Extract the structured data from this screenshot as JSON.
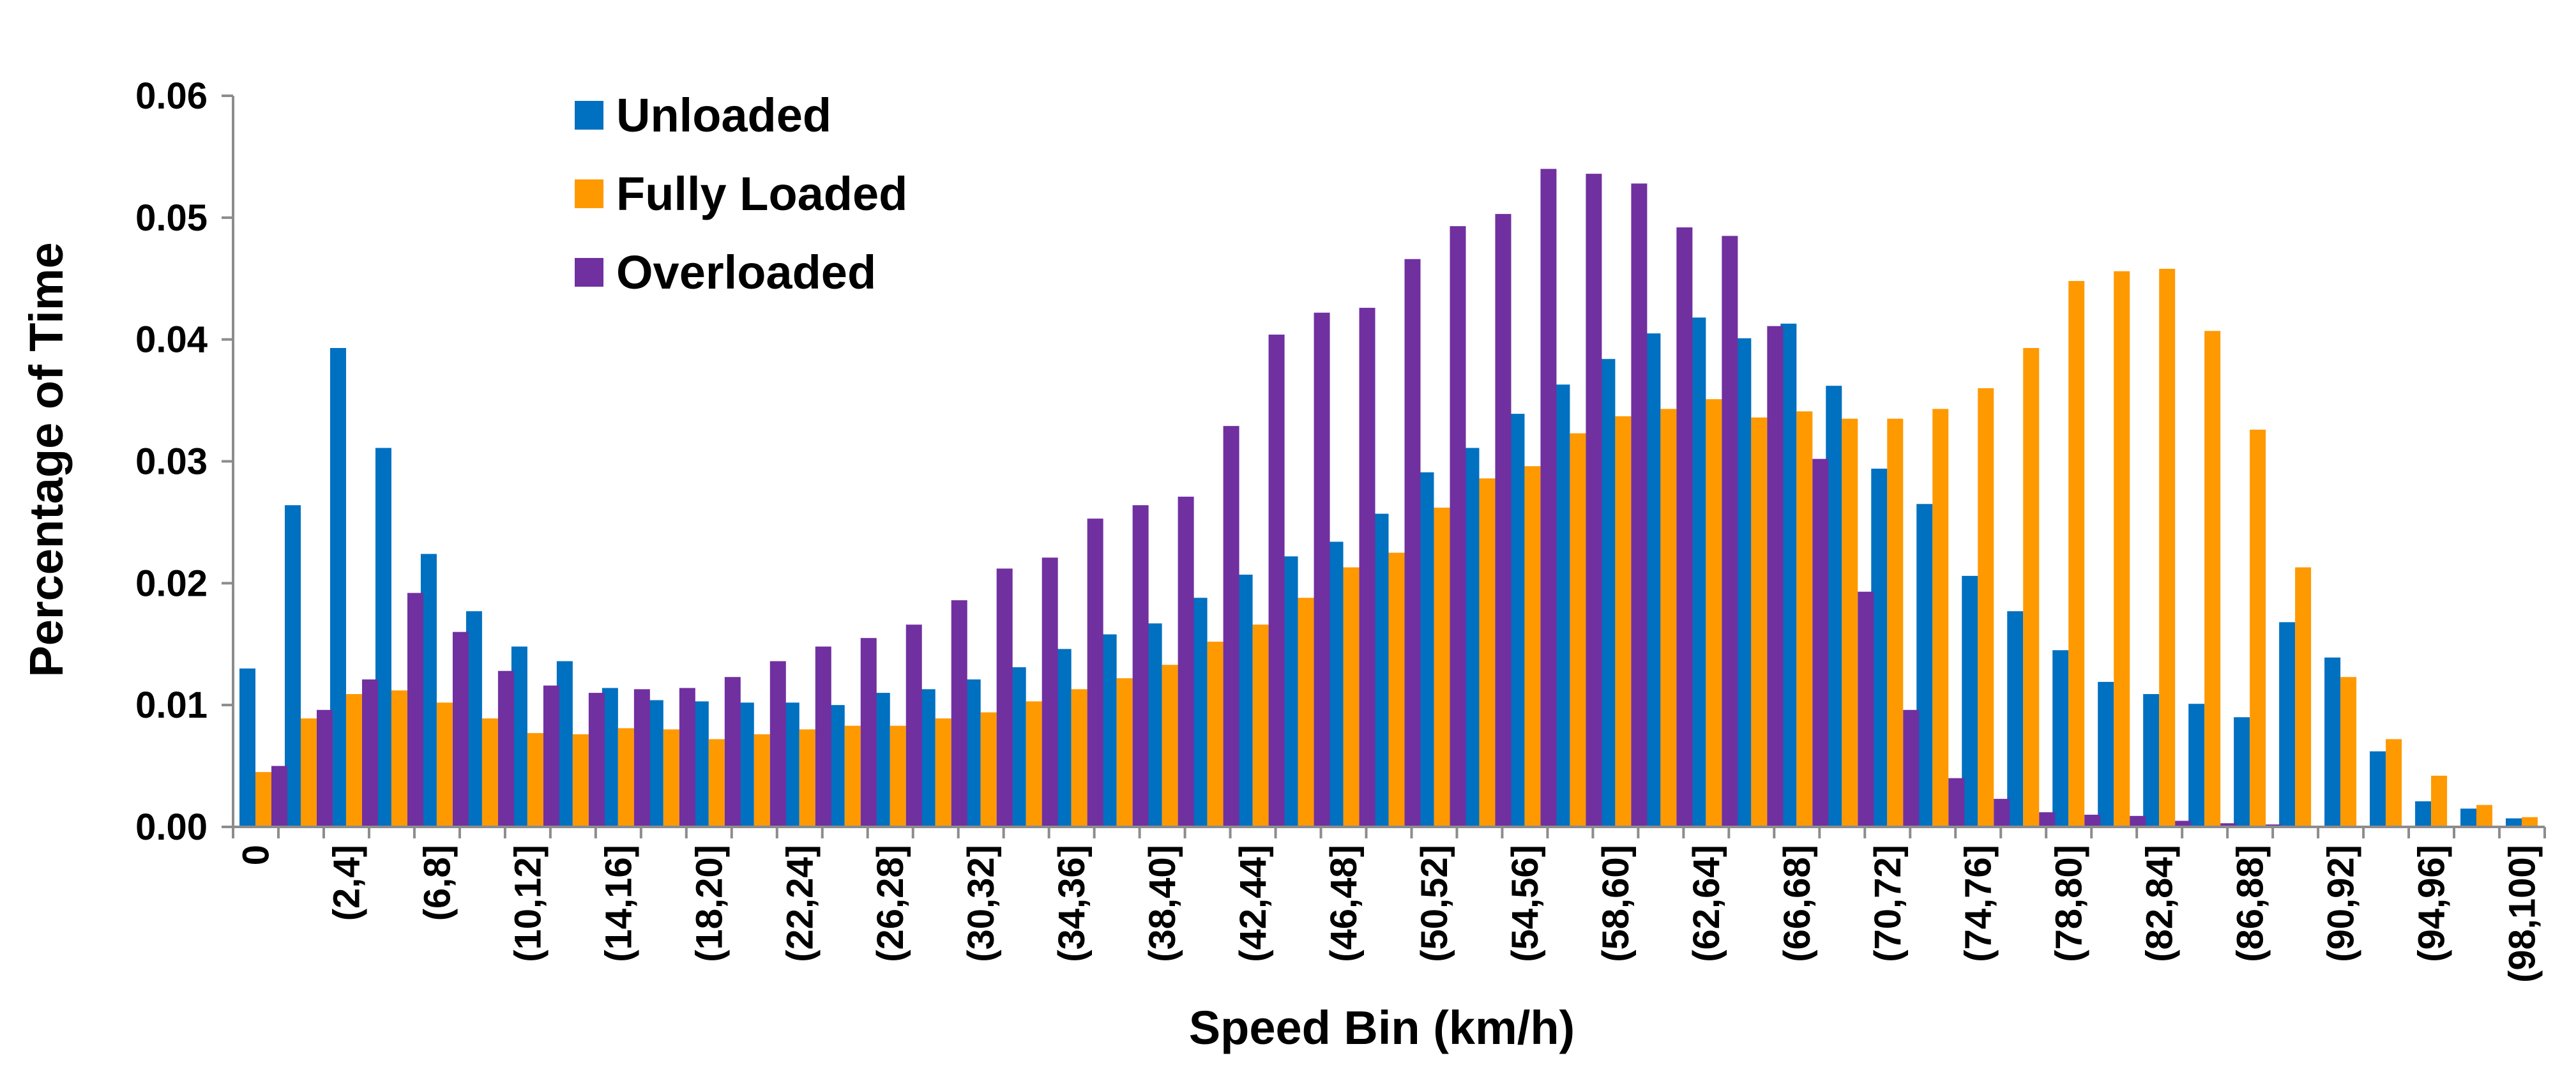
{
  "chart_data": {
    "type": "bar",
    "title": "",
    "xlabel": "Speed Bin (km/h)",
    "ylabel": "Percentage of Time",
    "ylim": [
      0,
      0.06
    ],
    "yticks": [
      0.0,
      0.01,
      0.02,
      0.03,
      0.04,
      0.05,
      0.06
    ],
    "ytick_labels": [
      "0.00",
      "0.01",
      "0.02",
      "0.03",
      "0.04",
      "0.05",
      "0.06"
    ],
    "grid": false,
    "legend_position": "top-left",
    "categories": [
      "0",
      "(0,2]",
      "(2,4]",
      "(4,6]",
      "(6,8]",
      "(8,10]",
      "(10,12]",
      "(12,14]",
      "(14,16]",
      "(16,18]",
      "(18,20]",
      "(20,22]",
      "(22,24]",
      "(24,26]",
      "(26,28]",
      "(28,30]",
      "(30,32]",
      "(32,34]",
      "(34,36]",
      "(36,38]",
      "(38,40]",
      "(40,42]",
      "(42,44]",
      "(44,46]",
      "(46,48]",
      "(48,50]",
      "(50,52]",
      "(52,54]",
      "(54,56]",
      "(56,58]",
      "(58,60]",
      "(60,62]",
      "(62,64]",
      "(64,66]",
      "(66,68]",
      "(68,70]",
      "(70,72]",
      "(72,74]",
      "(74,76]",
      "(76,78]",
      "(78,80]",
      "(80,82]",
      "(82,84]",
      "(84,86]",
      "(86,88]",
      "(88,90]",
      "(90,92]",
      "(92,94]",
      "(94,96]",
      "(96,98]",
      "(98,100]"
    ],
    "shown_tick_labels": [
      "0",
      "(2,4]",
      "(6,8]",
      "(10,12]",
      "(14,16]",
      "(18,20]",
      "(22,24]",
      "(26,28]",
      "(30,32]",
      "(34,36]",
      "(38,40]",
      "(42,44]",
      "(46,48]",
      "(50,52]",
      "(54,56]",
      "(58,60]",
      "(62,64]",
      "(66,68]",
      "(70,72]",
      "(74,76]",
      "(78,80]",
      "(82,84]",
      "(86,88]",
      "(90,92]",
      "(94,96]",
      "(98,100]"
    ],
    "series": [
      {
        "name": "Unloaded",
        "color": "#0070C0",
        "values": [
          0.013,
          0.0264,
          0.0393,
          0.0311,
          0.0224,
          0.0177,
          0.0148,
          0.0136,
          0.0114,
          0.0104,
          0.0103,
          0.0102,
          0.0102,
          0.01,
          0.011,
          0.0113,
          0.0121,
          0.0131,
          0.0146,
          0.0158,
          0.0167,
          0.0188,
          0.0207,
          0.0222,
          0.0234,
          0.0257,
          0.0291,
          0.0311,
          0.0339,
          0.0363,
          0.0384,
          0.0405,
          0.0418,
          0.0401,
          0.0413,
          0.0362,
          0.0294,
          0.0265,
          0.0206,
          0.0177,
          0.0145,
          0.0119,
          0.0109,
          0.0101,
          0.009,
          0.0168,
          0.0139,
          0.0062,
          0.0021,
          0.0015,
          0.0007
        ]
      },
      {
        "name": "Fully Loaded",
        "color": "#FF9900",
        "values": [
          0.0045,
          0.0089,
          0.0109,
          0.0112,
          0.0102,
          0.0089,
          0.0077,
          0.0076,
          0.0081,
          0.008,
          0.0072,
          0.0076,
          0.008,
          0.0083,
          0.0083,
          0.0089,
          0.0094,
          0.0103,
          0.0113,
          0.0122,
          0.0133,
          0.0152,
          0.0166,
          0.0188,
          0.0213,
          0.0225,
          0.0262,
          0.0286,
          0.0296,
          0.0323,
          0.0337,
          0.0343,
          0.0351,
          0.0336,
          0.0341,
          0.0335,
          0.0335,
          0.0343,
          0.036,
          0.0393,
          0.0448,
          0.0456,
          0.0458,
          0.0407,
          0.0326,
          0.0213,
          0.0123,
          0.0072,
          0.0042,
          0.0018,
          0.0008
        ]
      },
      {
        "name": "Overloaded",
        "color": "#7030A0",
        "values": [
          0.005,
          0.0096,
          0.0121,
          0.0192,
          0.016,
          0.0128,
          0.0116,
          0.011,
          0.0113,
          0.0114,
          0.0123,
          0.0136,
          0.0148,
          0.0155,
          0.0166,
          0.0186,
          0.0212,
          0.0221,
          0.0253,
          0.0264,
          0.0271,
          0.0329,
          0.0404,
          0.0422,
          0.0426,
          0.0466,
          0.0493,
          0.0503,
          0.054,
          0.0536,
          0.0528,
          0.0492,
          0.0485,
          0.0411,
          0.0302,
          0.0193,
          0.0096,
          0.004,
          0.0023,
          0.0012,
          0.001,
          0.0009,
          0.0005,
          0.0003,
          0.0002,
          0.0001,
          0.0001,
          0.0,
          0.0,
          0.0,
          0.0
        ]
      }
    ]
  }
}
